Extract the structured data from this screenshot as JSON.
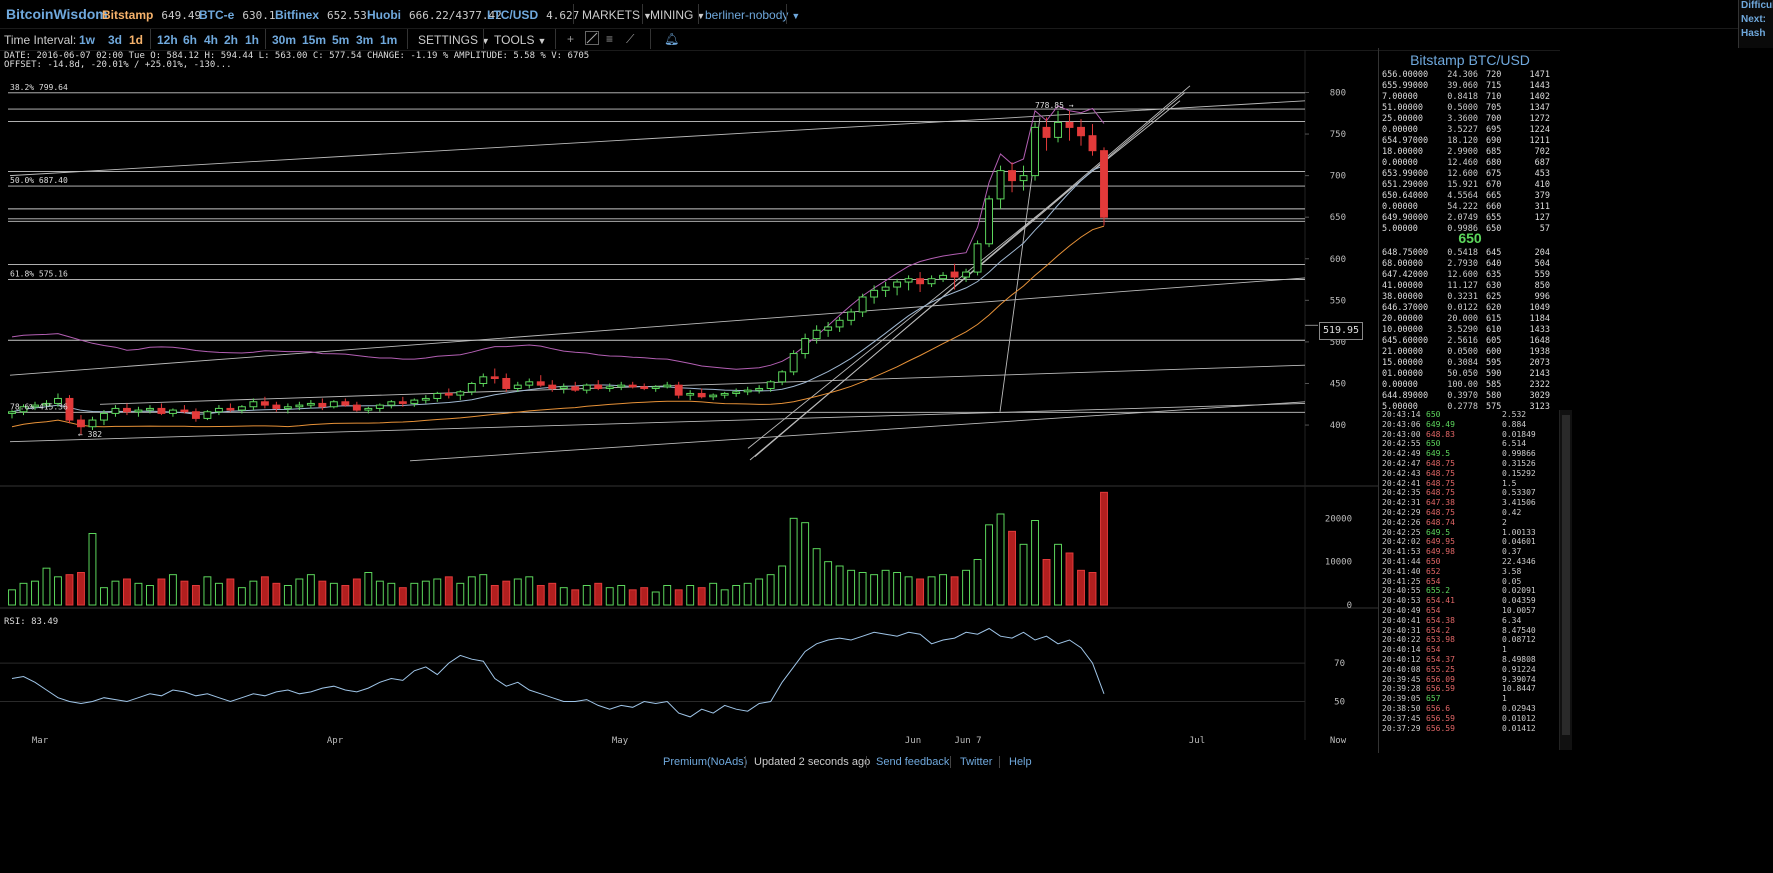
{
  "app": {
    "logo": "BitcoinWisdom"
  },
  "tickers": [
    {
      "name": "Bitstamp",
      "price": "649.49",
      "active": true
    },
    {
      "name": "BTC-e",
      "price": "630.1",
      "active": false
    },
    {
      "name": "Bitfinex",
      "price": "652.53",
      "active": false
    },
    {
      "name": "Huobi",
      "price": "666.22/4377.42",
      "active": false
    },
    {
      "name": "LTC/USD",
      "price": "4.627",
      "active": false
    }
  ],
  "menus": {
    "markets": "MARKETS",
    "mining": "MINING",
    "user": "berliner-nobody"
  },
  "diff_panel": [
    "Difficulty",
    "Next:",
    "Hash"
  ],
  "toolbar": {
    "label": "Time Interval:",
    "intervals": [
      "1w",
      "3d",
      "1d",
      "12h",
      "6h",
      "4h",
      "2h",
      "1h",
      "30m",
      "15m",
      "5m",
      "3m",
      "1m"
    ],
    "active_interval": "1d",
    "settings": "SETTINGS",
    "tools": "TOOLS"
  },
  "info": {
    "line": "DATE: 2016-06-07 02:00 Tue    O: 584.12    H: 594.44    L: 563.00    C: 577.54    CHANGE: -1.19 %    AMPLITUDE: 5.58 %    V: 6705",
    "offset": "OFFSET: -14.8d, -20.01% / +25.01%, -130..."
  },
  "chart_data": {
    "type": "candlestick",
    "price_axis": {
      "ticks": [
        400,
        450,
        500,
        550,
        600,
        650,
        700,
        750,
        800
      ],
      "range": [
        370,
        815
      ]
    },
    "x_axis": {
      "labels": [
        "Mar",
        "Apr",
        "May",
        "Jun",
        "Jun 7",
        "Jul",
        "Now"
      ]
    },
    "current_price_tag": "519.95",
    "annotations": [
      {
        "text": "38.2% 799.64",
        "price": 799.64
      },
      {
        "text": "50.0% 687.40",
        "price": 687.4
      },
      {
        "text": "61.8% 575.16",
        "price": 575.16
      },
      {
        "text": "78.6% 415.36",
        "price": 415.36
      },
      {
        "text": "778.85 →",
        "price": 778.85
      },
      {
        "text": "← 382",
        "price": 382
      }
    ],
    "candles": [
      [
        414,
        418,
        408,
        416
      ],
      [
        416,
        425,
        412,
        422
      ],
      [
        422,
        428,
        418,
        424
      ],
      [
        424,
        430,
        420,
        426
      ],
      [
        426,
        438,
        422,
        432
      ],
      [
        432,
        436,
        402,
        406
      ],
      [
        406,
        412,
        388,
        398
      ],
      [
        398,
        410,
        394,
        406
      ],
      [
        406,
        418,
        400,
        414
      ],
      [
        414,
        424,
        410,
        420
      ],
      [
        420,
        426,
        412,
        416
      ],
      [
        416,
        422,
        410,
        418
      ],
      [
        418,
        424,
        414,
        420
      ],
      [
        420,
        426,
        412,
        414
      ],
      [
        414,
        420,
        410,
        418
      ],
      [
        418,
        424,
        414,
        416
      ],
      [
        416,
        420,
        404,
        408
      ],
      [
        408,
        418,
        406,
        416
      ],
      [
        416,
        424,
        412,
        420
      ],
      [
        420,
        426,
        416,
        418
      ],
      [
        418,
        424,
        414,
        422
      ],
      [
        422,
        432,
        418,
        428
      ],
      [
        428,
        434,
        420,
        424
      ],
      [
        424,
        428,
        416,
        420
      ],
      [
        420,
        426,
        414,
        422
      ],
      [
        422,
        428,
        418,
        424
      ],
      [
        424,
        430,
        420,
        426
      ],
      [
        426,
        432,
        418,
        422
      ],
      [
        422,
        430,
        420,
        428
      ],
      [
        428,
        432,
        422,
        424
      ],
      [
        424,
        428,
        416,
        418
      ],
      [
        418,
        422,
        414,
        420
      ],
      [
        420,
        426,
        416,
        424
      ],
      [
        424,
        430,
        420,
        428
      ],
      [
        428,
        434,
        422,
        426
      ],
      [
        426,
        432,
        422,
        430
      ],
      [
        430,
        436,
        426,
        432
      ],
      [
        432,
        440,
        428,
        438
      ],
      [
        438,
        444,
        432,
        436
      ],
      [
        436,
        442,
        430,
        440
      ],
      [
        440,
        452,
        436,
        450
      ],
      [
        450,
        462,
        446,
        458
      ],
      [
        458,
        468,
        450,
        456
      ],
      [
        456,
        462,
        440,
        444
      ],
      [
        444,
        452,
        440,
        448
      ],
      [
        448,
        456,
        444,
        452
      ],
      [
        452,
        460,
        446,
        448
      ],
      [
        448,
        454,
        440,
        444
      ],
      [
        444,
        450,
        438,
        446
      ],
      [
        446,
        452,
        440,
        442
      ],
      [
        442,
        450,
        438,
        448
      ],
      [
        448,
        454,
        442,
        444
      ],
      [
        444,
        450,
        440,
        446
      ],
      [
        446,
        452,
        442,
        448
      ],
      [
        448,
        452,
        444,
        446
      ],
      [
        446,
        450,
        442,
        444
      ],
      [
        444,
        448,
        440,
        446
      ],
      [
        446,
        452,
        444,
        448
      ],
      [
        448,
        452,
        432,
        436
      ],
      [
        436,
        442,
        430,
        438
      ],
      [
        438,
        444,
        432,
        434
      ],
      [
        434,
        438,
        430,
        436
      ],
      [
        436,
        440,
        432,
        438
      ],
      [
        438,
        444,
        434,
        440
      ],
      [
        440,
        446,
        436,
        442
      ],
      [
        442,
        448,
        438,
        444
      ],
      [
        444,
        454,
        440,
        452
      ],
      [
        452,
        466,
        448,
        464
      ],
      [
        464,
        490,
        460,
        486
      ],
      [
        486,
        510,
        480,
        504
      ],
      [
        504,
        520,
        498,
        514
      ],
      [
        514,
        524,
        506,
        518
      ],
      [
        518,
        530,
        512,
        526
      ],
      [
        526,
        540,
        520,
        536
      ],
      [
        536,
        558,
        530,
        554
      ],
      [
        554,
        568,
        546,
        562
      ],
      [
        562,
        572,
        554,
        566
      ],
      [
        566,
        576,
        556,
        572
      ],
      [
        572,
        580,
        562,
        576
      ],
      [
        576,
        584,
        560,
        570
      ],
      [
        570,
        580,
        566,
        576
      ],
      [
        576,
        584,
        572,
        580
      ],
      [
        584,
        594,
        563,
        578
      ],
      [
        578,
        588,
        572,
        584
      ],
      [
        584,
        622,
        580,
        618
      ],
      [
        618,
        676,
        614,
        672
      ],
      [
        672,
        712,
        660,
        706
      ],
      [
        706,
        716,
        680,
        694
      ],
      [
        694,
        712,
        682,
        700
      ],
      [
        700,
        764,
        694,
        758
      ],
      [
        758,
        770,
        730,
        746
      ],
      [
        746,
        778,
        740,
        764
      ],
      [
        764,
        778,
        742,
        758
      ],
      [
        758,
        768,
        736,
        748
      ],
      [
        748,
        762,
        724,
        730
      ],
      [
        730,
        734,
        640,
        650
      ]
    ],
    "volume_axis": {
      "ticks": [
        0,
        10000,
        20000
      ],
      "range": [
        0,
        27000
      ]
    },
    "volume": [
      3500,
      5000,
      5500,
      8500,
      6500,
      7000,
      7500,
      16500,
      4000,
      5500,
      6000,
      5000,
      4500,
      6000,
      7000,
      5500,
      4500,
      6500,
      5000,
      6000,
      4000,
      5500,
      6500,
      5000,
      4500,
      6000,
      7000,
      5500,
      5000,
      4500,
      6000,
      7500,
      5500,
      5000,
      4000,
      5000,
      5500,
      6000,
      6500,
      5000,
      6500,
      7000,
      4500,
      5500,
      6000,
      6500,
      4500,
      5000,
      4000,
      3500,
      4500,
      5000,
      4000,
      4500,
      3500,
      4000,
      3000,
      4500,
      3500,
      4500,
      4000,
      5000,
      3500,
      4500,
      5000,
      6000,
      7000,
      9000,
      20000,
      19000,
      13000,
      10000,
      9000,
      8000,
      7500,
      7000,
      8000,
      7500,
      6500,
      6000,
      6500,
      7000,
      6500,
      8000,
      10500,
      18500,
      21000,
      17000,
      14000,
      19500,
      10500,
      14000,
      12000,
      8000,
      7500,
      26000
    ],
    "rsi": {
      "label": "RSI: 83.49",
      "ticks": [
        50,
        70
      ],
      "values": [
        62,
        63,
        60,
        56,
        52,
        50,
        49,
        50,
        52,
        51,
        50,
        52,
        54,
        53,
        56,
        55,
        53,
        54,
        52,
        50,
        52,
        54,
        53,
        55,
        56,
        54,
        55,
        57,
        58,
        56,
        55,
        57,
        60,
        62,
        61,
        66,
        68,
        64,
        70,
        74,
        72,
        71,
        62,
        58,
        60,
        56,
        54,
        52,
        50,
        50,
        51,
        48,
        46,
        48,
        47,
        50,
        49,
        50,
        44,
        42,
        46,
        44,
        48,
        46,
        45,
        49,
        50,
        60,
        68,
        76,
        80,
        82,
        83,
        82,
        84,
        86,
        85,
        84,
        86,
        85,
        80,
        82,
        83,
        86,
        85,
        88,
        84,
        83,
        86,
        82,
        84,
        80,
        82,
        78,
        70,
        54
      ]
    }
  },
  "orderbook": {
    "title": "Bitstamp BTC/USD",
    "asks": [
      [
        "656.00000",
        "24.306",
        "720",
        "1471"
      ],
      [
        "655.99000",
        "39.060",
        "715",
        "1443"
      ],
      [
        "7.00000",
        "0.8418",
        "710",
        "1402"
      ],
      [
        "51.00000",
        "0.5000",
        "705",
        "1347"
      ],
      [
        "25.00000",
        "3.3600",
        "700",
        "1272"
      ],
      [
        "0.00000",
        "3.5227",
        "695",
        "1224"
      ],
      [
        "654.97000",
        "18.120",
        "690",
        "1211"
      ],
      [
        "18.00000",
        "2.9900",
        "685",
        "702"
      ],
      [
        "0.00000",
        "12.460",
        "680",
        "687"
      ],
      [
        "653.99000",
        "12.600",
        "675",
        "453"
      ],
      [
        "651.29000",
        "15.921",
        "670",
        "410"
      ],
      [
        "650.64000",
        "4.5564",
        "665",
        "379"
      ],
      [
        "0.00000",
        "54.222",
        "660",
        "311"
      ],
      [
        "649.90000",
        "2.0749",
        "655",
        "127"
      ],
      [
        "5.00000",
        "0.9986",
        "650",
        "57"
      ]
    ],
    "mid": "650",
    "bids": [
      [
        "648.75000",
        "0.5418",
        "645",
        "204"
      ],
      [
        "68.00000",
        "2.7930",
        "640",
        "504"
      ],
      [
        "647.42000",
        "12.600",
        "635",
        "559"
      ],
      [
        "41.00000",
        "11.127",
        "630",
        "850"
      ],
      [
        "38.00000",
        "0.3231",
        "625",
        "996"
      ],
      [
        "646.37000",
        "0.0122",
        "620",
        "1049"
      ],
      [
        "20.00000",
        "20.000",
        "615",
        "1184"
      ],
      [
        "10.00000",
        "3.5290",
        "610",
        "1433"
      ],
      [
        "645.60000",
        "2.5616",
        "605",
        "1648"
      ],
      [
        "21.00000",
        "0.0500",
        "600",
        "1938"
      ],
      [
        "15.00000",
        "0.3084",
        "595",
        "2073"
      ],
      [
        "01.00000",
        "50.050",
        "590",
        "2143"
      ],
      [
        "0.00000",
        "100.00",
        "585",
        "2322"
      ],
      [
        "644.89000",
        "0.3970",
        "580",
        "3029"
      ],
      [
        "5.00000",
        "0.2778",
        "575",
        "3123"
      ]
    ]
  },
  "trades": [
    [
      "20:43:14",
      "650",
      "b",
      "2.532"
    ],
    [
      "20:43:06",
      "649.49",
      "b",
      "0.884"
    ],
    [
      "20:43:00",
      "648.83",
      "s",
      "0.01849"
    ],
    [
      "20:42:55",
      "650",
      "b",
      "6.514"
    ],
    [
      "20:42:49",
      "649.5",
      "b",
      "0.99866"
    ],
    [
      "20:42:47",
      "648.75",
      "s",
      "0.31526"
    ],
    [
      "20:42:43",
      "648.75",
      "s",
      "0.15292"
    ],
    [
      "20:42:41",
      "648.75",
      "s",
      "1.5"
    ],
    [
      "20:42:35",
      "648.75",
      "s",
      "0.53307"
    ],
    [
      "20:42:31",
      "647.38",
      "s",
      "3.41506"
    ],
    [
      "20:42:29",
      "648.75",
      "s",
      "0.42"
    ],
    [
      "20:42:26",
      "648.74",
      "s",
      "2"
    ],
    [
      "20:42:25",
      "649.5",
      "b",
      "1.00133"
    ],
    [
      "20:42:02",
      "649.95",
      "s",
      "0.04601"
    ],
    [
      "20:41:53",
      "649.98",
      "s",
      "0.37"
    ],
    [
      "20:41:44",
      "650",
      "s",
      "22.4346"
    ],
    [
      "20:41:40",
      "652",
      "s",
      "3.58"
    ],
    [
      "20:41:25",
      "654",
      "s",
      "0.05"
    ],
    [
      "20:40:55",
      "655.2",
      "b",
      "0.02091"
    ],
    [
      "20:40:53",
      "654.41",
      "s",
      "0.04359"
    ],
    [
      "20:40:49",
      "654",
      "s",
      "10.0057"
    ],
    [
      "20:40:41",
      "654.38",
      "s",
      "6.34"
    ],
    [
      "20:40:31",
      "654.2",
      "s",
      "8.47540"
    ],
    [
      "20:40:22",
      "653.98",
      "s",
      "0.08712"
    ],
    [
      "20:40:14",
      "654",
      "s",
      "1"
    ],
    [
      "20:40:12",
      "654.37",
      "s",
      "8.49808"
    ],
    [
      "20:40:08",
      "655.25",
      "s",
      "0.91224"
    ],
    [
      "20:39:45",
      "656.09",
      "s",
      "9.39074"
    ],
    [
      "20:39:28",
      "656.59",
      "s",
      "10.8447"
    ],
    [
      "20:39:05",
      "657",
      "b",
      "1"
    ],
    [
      "20:38:50",
      "656.6",
      "s",
      "0.02943"
    ],
    [
      "20:37:45",
      "656.59",
      "s",
      "0.01012"
    ],
    [
      "20:37:29",
      "656.59",
      "s",
      "0.01412"
    ]
  ],
  "footer": {
    "premium": "Premium(NoAds)",
    "status": "Updated 2 seconds ago",
    "feedback": "Send feedback",
    "twitter": "Twitter",
    "help": "Help"
  },
  "colors": {
    "up": "#5cd65c",
    "down": "#e23a3a",
    "link": "#6fa8dc",
    "active": "#f6b26b"
  }
}
